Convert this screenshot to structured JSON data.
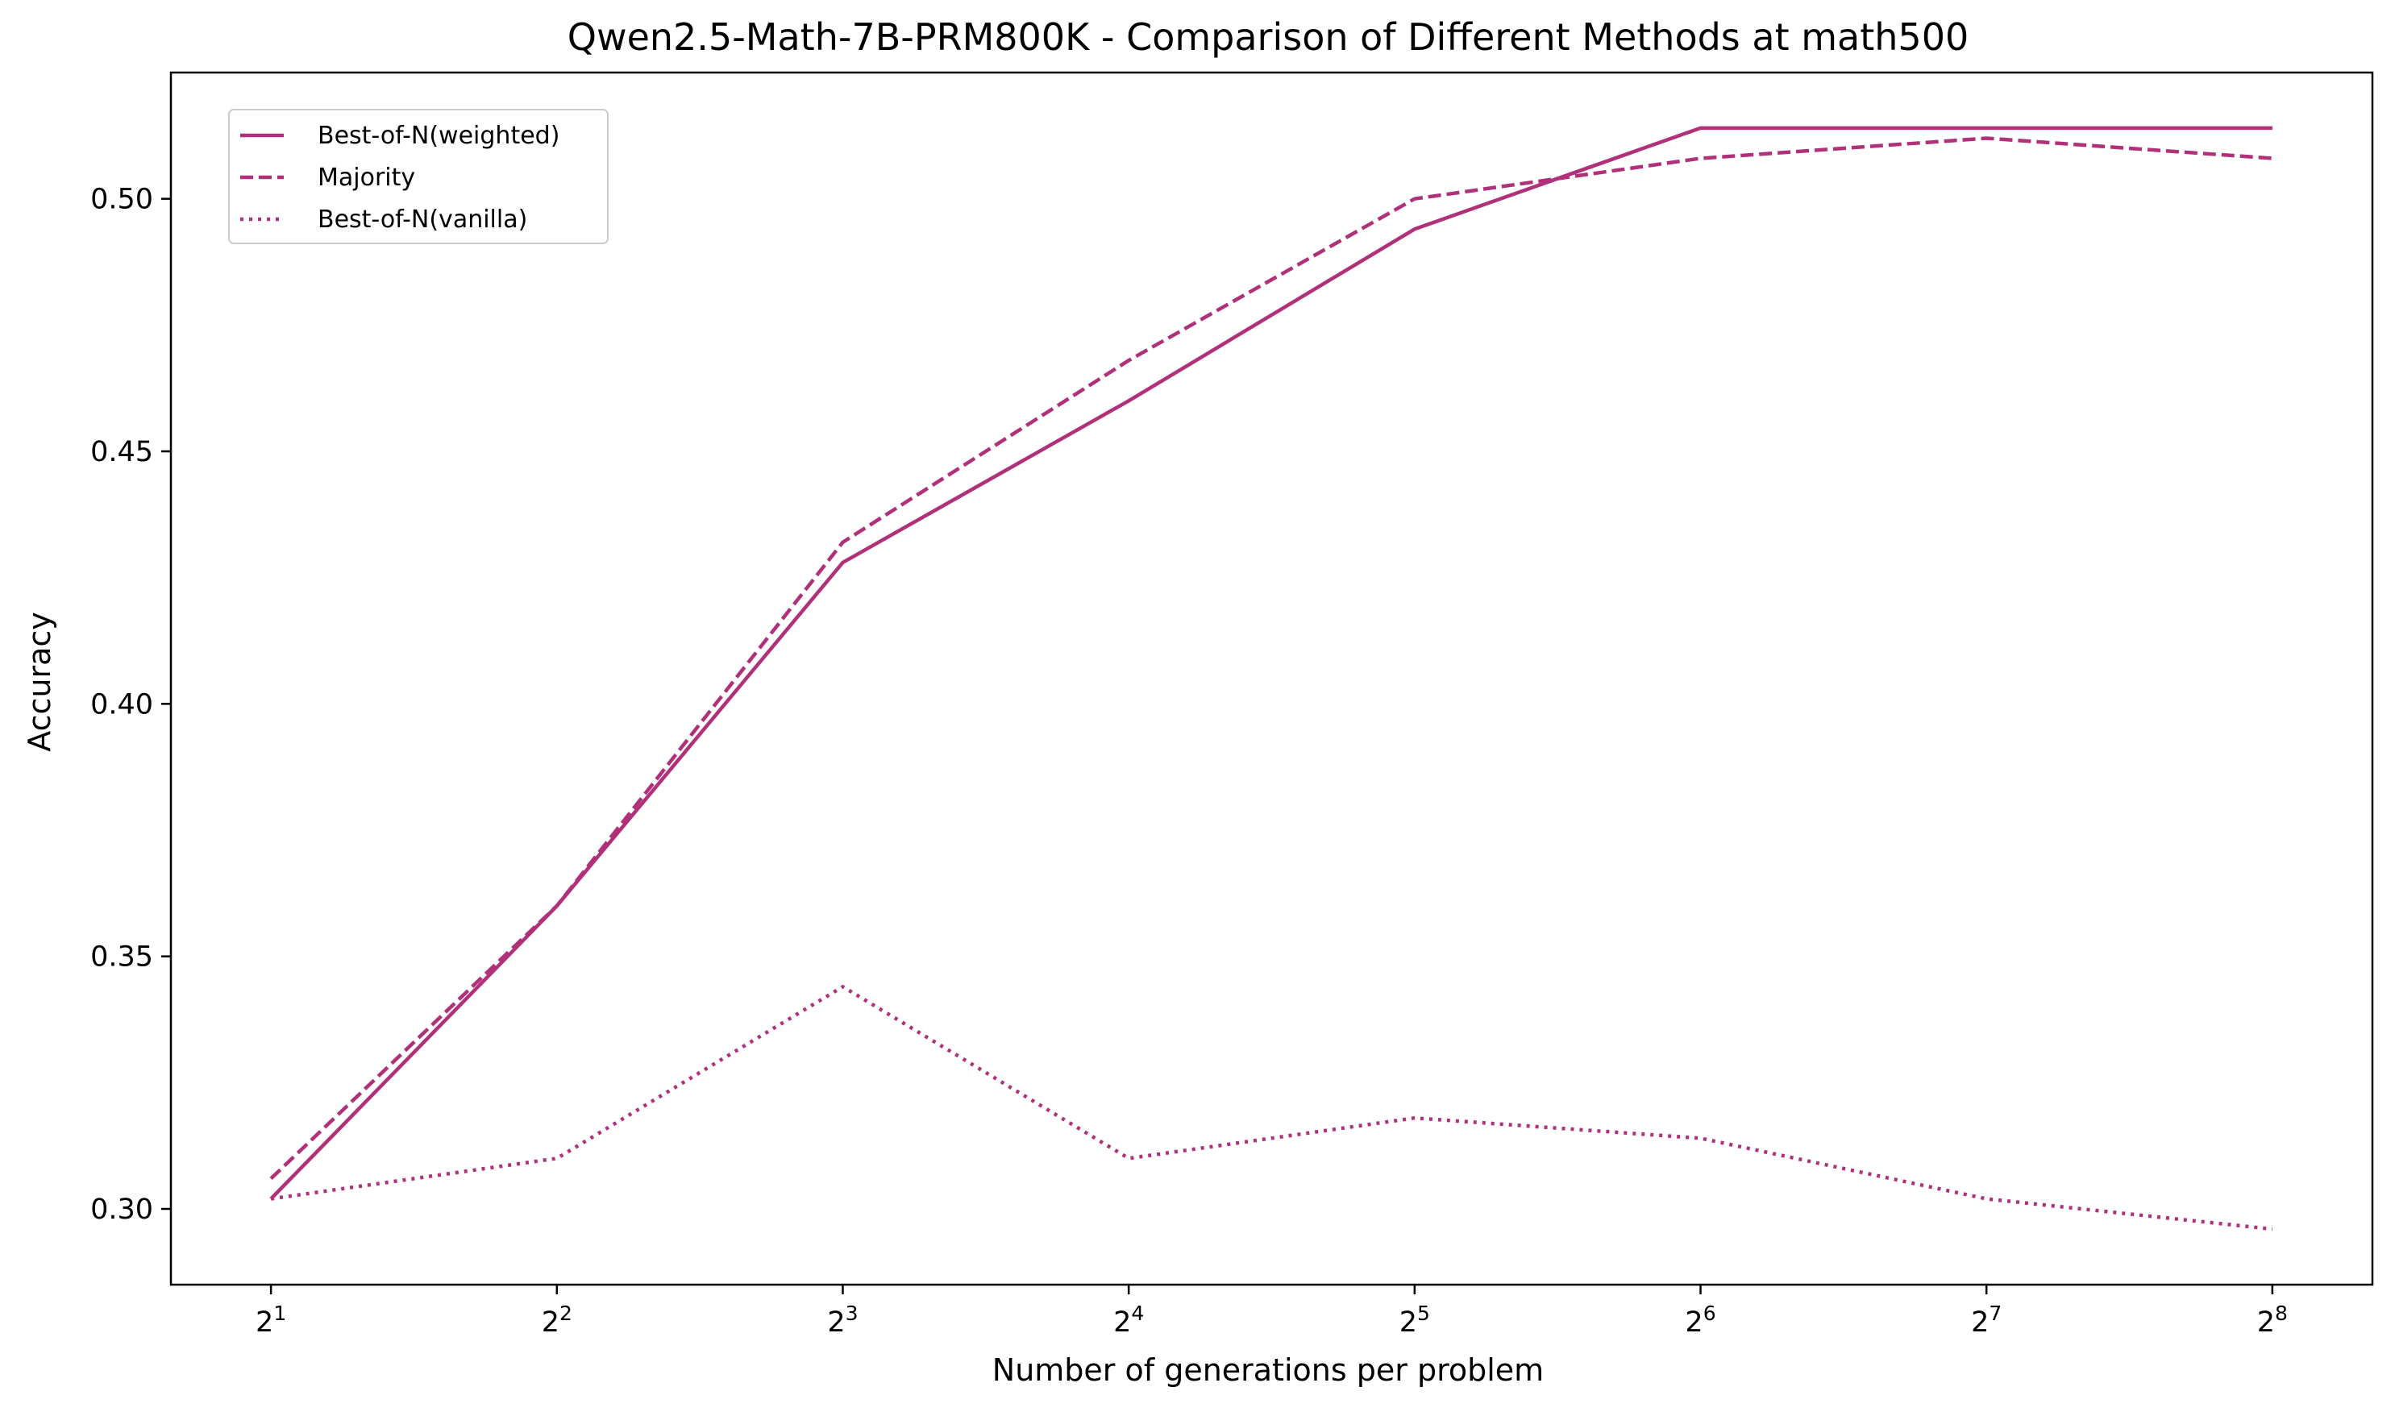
{
  "chart_data": {
    "type": "line",
    "title": "Qwen2.5-Math-7B-PRM800K - Comparison of Different Methods at math500",
    "xlabel": "Number of generations per problem",
    "ylabel": "Accuracy",
    "x_scale": "log2",
    "x": [
      2,
      4,
      8,
      16,
      32,
      64,
      128,
      256
    ],
    "x_tick_labels": [
      {
        "base": "2",
        "exp": "1"
      },
      {
        "base": "2",
        "exp": "2"
      },
      {
        "base": "2",
        "exp": "3"
      },
      {
        "base": "2",
        "exp": "4"
      },
      {
        "base": "2",
        "exp": "5"
      },
      {
        "base": "2",
        "exp": "6"
      },
      {
        "base": "2",
        "exp": "7"
      },
      {
        "base": "2",
        "exp": "8"
      }
    ],
    "y_ticks": [
      "0.30",
      "0.35",
      "0.40",
      "0.45",
      "0.50"
    ],
    "ylim": [
      0.285,
      0.525
    ],
    "grid": false,
    "legend_position": "top-left",
    "series": [
      {
        "name": "Best-of-N(weighted)",
        "style": "solid",
        "color": "#b0307a",
        "values": [
          0.302,
          0.36,
          0.428,
          0.46,
          0.494,
          0.514,
          0.514,
          0.514
        ]
      },
      {
        "name": "Majority",
        "style": "dashed",
        "color": "#b0307a",
        "values": [
          0.306,
          0.36,
          0.432,
          0.468,
          0.5,
          0.508,
          0.512,
          0.508
        ]
      },
      {
        "name": "Best-of-N(vanilla)",
        "style": "dotted",
        "color": "#b0307a",
        "values": [
          0.302,
          0.31,
          0.344,
          0.31,
          0.318,
          0.314,
          0.302,
          0.296
        ]
      }
    ]
  }
}
